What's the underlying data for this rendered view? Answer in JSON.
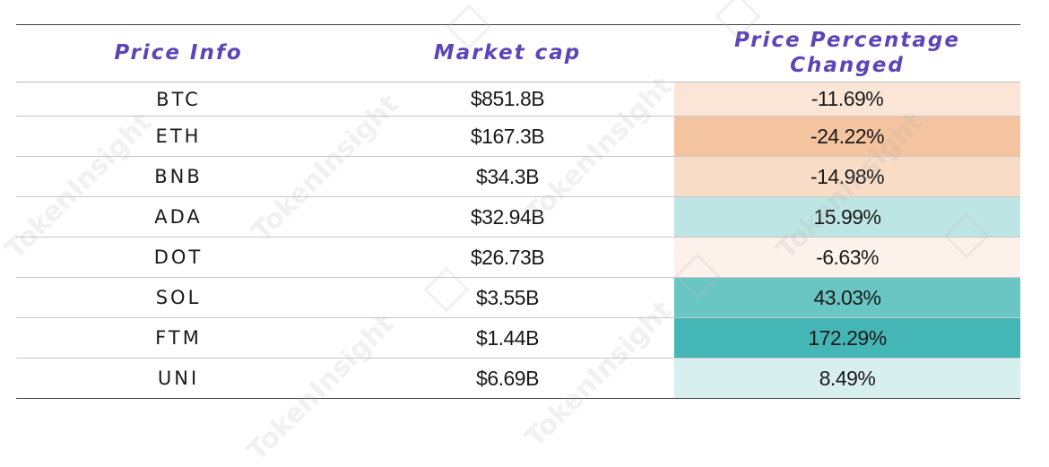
{
  "table": {
    "headers": {
      "price_info": "Price Info",
      "market_cap": "Market cap",
      "price_change_line1": "Price Percentage",
      "price_change_line2": "Changed"
    },
    "rows": [
      {
        "coin": "BTC",
        "market_cap": "$851.8B",
        "change": "-11.69%",
        "change_color": "#fbe5d6"
      },
      {
        "coin": "ETH",
        "market_cap": "$167.3B",
        "change": "-24.22%",
        "change_color": "#f4c3a0"
      },
      {
        "coin": "BNB",
        "market_cap": "$34.3B",
        "change": "-14.98%",
        "change_color": "#f9dcc6"
      },
      {
        "coin": "ADA",
        "market_cap": "$32.94B",
        "change": "15.99%",
        "change_color": "#bde5e3"
      },
      {
        "coin": "DOT",
        "market_cap": "$26.73B",
        "change": "-6.63%",
        "change_color": "#fdf1eb"
      },
      {
        "coin": "SOL",
        "market_cap": "$3.55B",
        "change": "43.03%",
        "change_color": "#69c6c3"
      },
      {
        "coin": "FTM",
        "market_cap": "$1.44B",
        "change": "172.29%",
        "change_color": "#44b6b5"
      },
      {
        "coin": "UNI",
        "market_cap": "$6.69B",
        "change": "8.49%",
        "change_color": "#d8eff0"
      }
    ]
  },
  "watermark": {
    "text": "TokenInsight"
  },
  "colors": {
    "header_text": "#5b45b8",
    "negative_strong": "#f4c3a0",
    "positive_strong": "#44b6b5"
  }
}
